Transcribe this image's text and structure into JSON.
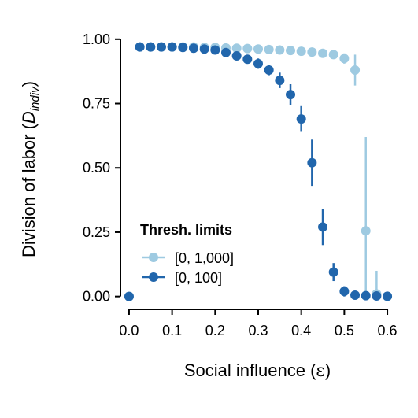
{
  "chart_data": {
    "type": "scatter",
    "xlabel_main": "Social influence (",
    "xlabel_symbol": "ε",
    "xlabel_end": ")",
    "ylabel_main": "Division of labor (",
    "ylabel_D": "D",
    "ylabel_sub": "indiv",
    "ylabel_end": ")",
    "xlim": [
      -0.02,
      0.62
    ],
    "ylim": [
      -0.05,
      1.03
    ],
    "x_ticks": [
      0.0,
      0.1,
      0.2,
      0.3,
      0.4,
      0.5,
      0.6
    ],
    "x_tick_labels": [
      "0.0",
      "0.1",
      "0.2",
      "0.3",
      "0.4",
      "0.5",
      "0.6"
    ],
    "y_ticks": [
      0.0,
      0.25,
      0.5,
      0.75,
      1.0
    ],
    "y_tick_labels": [
      "0.00",
      "0.25",
      "0.50",
      "0.75",
      "1.00"
    ],
    "grid": false,
    "legend_placement": "bottom-left",
    "legend_title": "Thresh. limits",
    "series": [
      {
        "name": "[0, 1,000]",
        "color": "#9ecae1",
        "points": [
          {
            "x": 0.0,
            "y": 0.0,
            "lo": 0.0,
            "hi": 0.0
          },
          {
            "x": 0.025,
            "y": 0.97,
            "lo": 0.965,
            "hi": 0.975
          },
          {
            "x": 0.05,
            "y": 0.97,
            "lo": 0.965,
            "hi": 0.975
          },
          {
            "x": 0.075,
            "y": 0.97,
            "lo": 0.965,
            "hi": 0.975
          },
          {
            "x": 0.1,
            "y": 0.97,
            "lo": 0.965,
            "hi": 0.975
          },
          {
            "x": 0.125,
            "y": 0.97,
            "lo": 0.965,
            "hi": 0.975
          },
          {
            "x": 0.15,
            "y": 0.97,
            "lo": 0.965,
            "hi": 0.975
          },
          {
            "x": 0.175,
            "y": 0.968,
            "lo": 0.963,
            "hi": 0.973
          },
          {
            "x": 0.2,
            "y": 0.968,
            "lo": 0.963,
            "hi": 0.973
          },
          {
            "x": 0.225,
            "y": 0.966,
            "lo": 0.961,
            "hi": 0.971
          },
          {
            "x": 0.25,
            "y": 0.965,
            "lo": 0.96,
            "hi": 0.97
          },
          {
            "x": 0.275,
            "y": 0.964,
            "lo": 0.959,
            "hi": 0.969
          },
          {
            "x": 0.3,
            "y": 0.962,
            "lo": 0.957,
            "hi": 0.967
          },
          {
            "x": 0.325,
            "y": 0.96,
            "lo": 0.955,
            "hi": 0.965
          },
          {
            "x": 0.35,
            "y": 0.958,
            "lo": 0.953,
            "hi": 0.963
          },
          {
            "x": 0.375,
            "y": 0.956,
            "lo": 0.951,
            "hi": 0.961
          },
          {
            "x": 0.4,
            "y": 0.953,
            "lo": 0.948,
            "hi": 0.958
          },
          {
            "x": 0.425,
            "y": 0.95,
            "lo": 0.944,
            "hi": 0.956
          },
          {
            "x": 0.45,
            "y": 0.945,
            "lo": 0.938,
            "hi": 0.952
          },
          {
            "x": 0.475,
            "y": 0.94,
            "lo": 0.925,
            "hi": 0.955
          },
          {
            "x": 0.5,
            "y": 0.925,
            "lo": 0.905,
            "hi": 0.945
          },
          {
            "x": 0.525,
            "y": 0.88,
            "lo": 0.82,
            "hi": 0.94
          },
          {
            "x": 0.55,
            "y": 0.255,
            "lo": 0.0,
            "hi": 0.62
          },
          {
            "x": 0.575,
            "y": 0.01,
            "lo": 0.0,
            "hi": 0.1
          },
          {
            "x": 0.6,
            "y": 0.0,
            "lo": 0.0,
            "hi": 0.0
          }
        ]
      },
      {
        "name": "[0, 100]",
        "color": "#2166ac",
        "points": [
          {
            "x": 0.0,
            "y": 0.0,
            "lo": 0.0,
            "hi": 0.0
          },
          {
            "x": 0.025,
            "y": 0.97,
            "lo": 0.965,
            "hi": 0.975
          },
          {
            "x": 0.05,
            "y": 0.97,
            "lo": 0.965,
            "hi": 0.975
          },
          {
            "x": 0.075,
            "y": 0.97,
            "lo": 0.965,
            "hi": 0.975
          },
          {
            "x": 0.1,
            "y": 0.97,
            "lo": 0.965,
            "hi": 0.975
          },
          {
            "x": 0.125,
            "y": 0.968,
            "lo": 0.963,
            "hi": 0.973
          },
          {
            "x": 0.15,
            "y": 0.965,
            "lo": 0.96,
            "hi": 0.97
          },
          {
            "x": 0.175,
            "y": 0.962,
            "lo": 0.957,
            "hi": 0.967
          },
          {
            "x": 0.2,
            "y": 0.958,
            "lo": 0.953,
            "hi": 0.963
          },
          {
            "x": 0.225,
            "y": 0.948,
            "lo": 0.943,
            "hi": 0.953
          },
          {
            "x": 0.25,
            "y": 0.935,
            "lo": 0.928,
            "hi": 0.942
          },
          {
            "x": 0.275,
            "y": 0.922,
            "lo": 0.912,
            "hi": 0.932
          },
          {
            "x": 0.3,
            "y": 0.905,
            "lo": 0.885,
            "hi": 0.925
          },
          {
            "x": 0.325,
            "y": 0.88,
            "lo": 0.86,
            "hi": 0.9
          },
          {
            "x": 0.35,
            "y": 0.84,
            "lo": 0.81,
            "hi": 0.87
          },
          {
            "x": 0.375,
            "y": 0.785,
            "lo": 0.745,
            "hi": 0.825
          },
          {
            "x": 0.4,
            "y": 0.69,
            "lo": 0.64,
            "hi": 0.74
          },
          {
            "x": 0.425,
            "y": 0.52,
            "lo": 0.43,
            "hi": 0.61
          },
          {
            "x": 0.45,
            "y": 0.27,
            "lo": 0.2,
            "hi": 0.34
          },
          {
            "x": 0.475,
            "y": 0.095,
            "lo": 0.06,
            "hi": 0.13
          },
          {
            "x": 0.5,
            "y": 0.02,
            "lo": 0.0,
            "hi": 0.04
          },
          {
            "x": 0.525,
            "y": 0.005,
            "lo": 0.0,
            "hi": 0.01
          },
          {
            "x": 0.55,
            "y": 0.003,
            "lo": 0.0,
            "hi": 0.006
          },
          {
            "x": 0.575,
            "y": 0.002,
            "lo": 0.0,
            "hi": 0.004
          },
          {
            "x": 0.6,
            "y": 0.001,
            "lo": 0.0,
            "hi": 0.002
          }
        ]
      }
    ]
  }
}
